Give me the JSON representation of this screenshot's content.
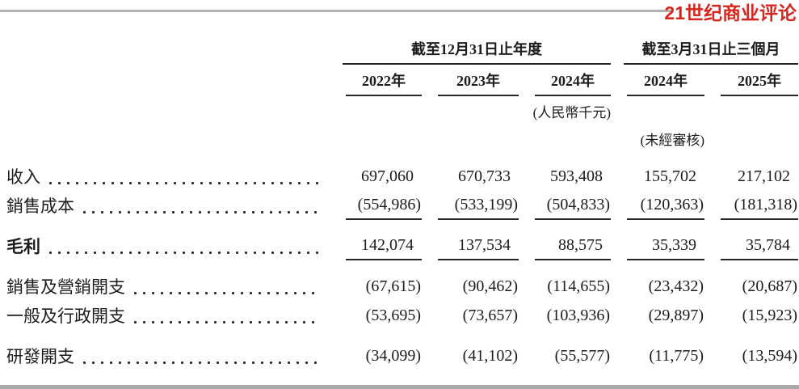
{
  "logo": {
    "text": "21世纪商业评论",
    "color": "#d5271e"
  },
  "table": {
    "column_groups": [
      {
        "label": "截至12月31日止年度",
        "columns": [
          "2022年",
          "2023年",
          "2024年"
        ]
      },
      {
        "label": "截至3月31日止三個月",
        "columns": [
          "2024年",
          "2025年"
        ]
      }
    ],
    "unit_note": "(人民幣千元)",
    "unaudited_note": "(未經審核)",
    "rows": [
      {
        "label": "收入",
        "bold": false,
        "rule_below": false,
        "gap_before": false,
        "values": [
          "697,060",
          "670,733",
          "593,408",
          "155,702",
          "217,102"
        ]
      },
      {
        "label": "銷售成本",
        "bold": false,
        "rule_below": true,
        "gap_before": false,
        "values": [
          "(554,986)",
          "(533,199)",
          "(504,833)",
          "(120,363)",
          "(181,318)"
        ]
      },
      {
        "label": "毛利",
        "bold": true,
        "rule_below": true,
        "gap_before": true,
        "values": [
          "142,074",
          "137,534",
          "88,575",
          "35,339",
          "35,784"
        ]
      },
      {
        "label": "銷售及營銷開支",
        "bold": false,
        "rule_below": false,
        "gap_before": true,
        "values": [
          "(67,615)",
          "(90,462)",
          "(114,655)",
          "(23,432)",
          "(20,687)"
        ]
      },
      {
        "label": "一般及行政開支",
        "bold": false,
        "rule_below": false,
        "gap_before": false,
        "values": [
          "(53,695)",
          "(73,657)",
          "(103,936)",
          "(29,897)",
          "(15,923)"
        ]
      },
      {
        "label": "研發開支",
        "bold": false,
        "rule_below": false,
        "gap_before": true,
        "values": [
          "(34,099)",
          "(41,102)",
          "(55,577)",
          "(11,775)",
          "(13,594)"
        ]
      }
    ]
  }
}
